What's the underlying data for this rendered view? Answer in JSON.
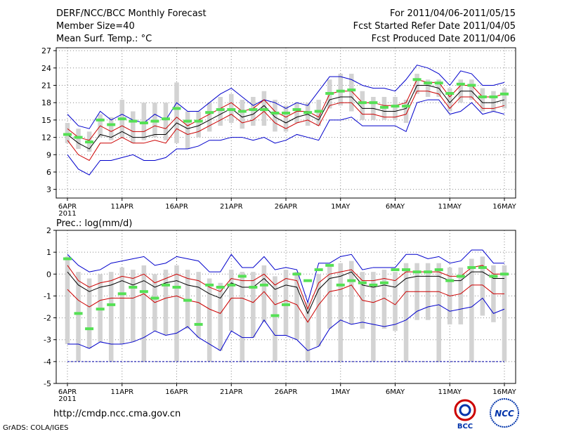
{
  "header": {
    "title": "DERF/NCC/BCC Monthly Forecast",
    "member_size": "Member Size=40",
    "variable": "Mean Surf. Temp.: °C",
    "forecast_period": "For 2011/04/06-2011/05/15",
    "started_refer": "Fcst Started Refer Date 2011/04/05",
    "produced": "Fcst Produced Date 2011/04/06"
  },
  "footer": {
    "url": "http://cmdp.ncc.cma.gov.cn",
    "grads": "GrADS: COLA/IGES"
  },
  "logos": {
    "bcc": "BCC",
    "ncc": "NCC"
  },
  "colors": {
    "upper": "#0000cc",
    "lower": "#0000cc",
    "mean": "#000000",
    "spread": "#cc0000",
    "obs": "#55e055",
    "box": "#d3d3d3"
  },
  "chart_data": [
    {
      "type": "line",
      "title": "Mean Surf. Temp.: °C",
      "ylim": [
        1.5,
        27.5
      ],
      "yticks": [
        3,
        6,
        9,
        12,
        15,
        18,
        21,
        24,
        27
      ],
      "x_tick_labels": [
        {
          "day": 0,
          "label": "6APR",
          "sub": "2011"
        },
        {
          "day": 5,
          "label": "11APR"
        },
        {
          "day": 10,
          "label": "16APR"
        },
        {
          "day": 15,
          "label": "21APR"
        },
        {
          "day": 20,
          "label": "26APR"
        },
        {
          "day": 25,
          "label": "1MAY"
        },
        {
          "day": 30,
          "label": "6MAY"
        },
        {
          "day": 35,
          "label": "11MAY"
        },
        {
          "day": 40,
          "label": "16MAY"
        }
      ],
      "series": [
        {
          "name": "ensemble-max",
          "values": [
            16,
            14,
            13.5,
            16.5,
            15,
            16,
            15,
            14.5,
            16,
            15,
            18,
            16.5,
            16.5,
            18,
            19.5,
            20.5,
            19,
            17.5,
            18.5,
            18,
            17,
            18,
            17.5,
            20,
            22.5,
            22.5,
            22,
            21,
            20.5,
            20.5,
            20,
            22,
            24.5,
            24,
            23,
            21,
            23.5,
            23,
            21,
            21,
            21.5
          ]
        },
        {
          "name": "ensemble-mean-upper",
          "values": [
            13.5,
            12,
            11.5,
            14,
            13,
            14,
            13,
            13,
            14,
            13.5,
            15.5,
            14,
            15,
            16,
            17,
            18,
            16.5,
            17,
            18.5,
            16.5,
            15.5,
            16.5,
            16.5,
            15.5,
            19.5,
            20,
            20,
            18,
            18,
            17.5,
            17.5,
            18,
            22,
            21.5,
            21.5,
            19,
            21,
            21,
            19,
            19,
            19.5
          ]
        },
        {
          "name": "ensemble-mean",
          "values": [
            12.5,
            11,
            10,
            12.5,
            12,
            13,
            12,
            12,
            12.5,
            12.5,
            14.5,
            13.5,
            14,
            15,
            16,
            17,
            15.5,
            16,
            17.5,
            15.5,
            14.5,
            15.5,
            16,
            15,
            18.5,
            19,
            19,
            17,
            17,
            16.5,
            16.5,
            17,
            21,
            21,
            20.5,
            18,
            20,
            20,
            18,
            18,
            18.5
          ]
        },
        {
          "name": "ensemble-mean-lower",
          "values": [
            11.5,
            9,
            8,
            11,
            11,
            12,
            11,
            11,
            11.5,
            11,
            13.5,
            12.5,
            13,
            14,
            15,
            16,
            14.5,
            15,
            16.5,
            14.5,
            13.5,
            14.5,
            15,
            14,
            17.5,
            18,
            18,
            16,
            16,
            15.5,
            15.5,
            16,
            20,
            20,
            19.5,
            17,
            19,
            19,
            17,
            17,
            17.5
          ]
        },
        {
          "name": "ensemble-min",
          "values": [
            9,
            6.5,
            5.5,
            8,
            8,
            8.5,
            9,
            8,
            8,
            8.5,
            10,
            10,
            10.5,
            11.5,
            11.5,
            12,
            12,
            11.5,
            12,
            11,
            11.5,
            12.5,
            12,
            11.5,
            15,
            15,
            15.5,
            14,
            14,
            14,
            14,
            13,
            18,
            18.5,
            18.5,
            16,
            16.5,
            18,
            16,
            16.5,
            16
          ]
        }
      ],
      "observed": [
        12.5,
        12,
        11.2,
        15,
        14.2,
        15.2,
        14.8,
        14.5,
        14.8,
        15.2,
        17,
        14.8,
        14.8,
        16.3,
        16.8,
        16.8,
        16.5,
        16.8,
        16.8,
        16.2,
        16.2,
        16.8,
        16.3,
        16.5,
        19.6,
        20,
        20.2,
        18,
        18,
        17.2,
        17.4,
        17.4,
        22,
        21.4,
        21.4,
        19.6,
        21.2,
        21,
        19,
        19,
        19.5
      ],
      "boxes": [
        [
          11,
          14.5
        ],
        [
          10,
          13.5
        ],
        [
          9.5,
          13
        ],
        [
          12,
          16
        ],
        [
          11.5,
          15.5
        ],
        [
          12,
          18.5
        ],
        [
          11,
          16.5
        ],
        [
          11.5,
          18
        ],
        [
          12,
          18
        ],
        [
          11.5,
          18
        ],
        [
          11,
          21.5
        ],
        [
          10,
          16.5
        ],
        [
          12,
          16.5
        ],
        [
          13,
          18
        ],
        [
          14,
          19
        ],
        [
          14.5,
          19.5
        ],
        [
          13.5,
          18.5
        ],
        [
          14,
          19
        ],
        [
          14,
          20
        ],
        [
          13,
          18.5
        ],
        [
          13,
          17.5
        ],
        [
          14.5,
          18
        ],
        [
          14,
          18
        ],
        [
          14,
          18.5
        ],
        [
          17,
          22
        ],
        [
          17.5,
          23
        ],
        [
          16.5,
          23
        ],
        [
          15,
          20
        ],
        [
          15,
          19
        ],
        [
          15,
          19
        ],
        [
          15,
          19
        ],
        [
          14.5,
          18.5
        ],
        [
          19.5,
          23
        ],
        [
          19,
          22
        ],
        [
          19,
          22
        ],
        [
          16.5,
          20.5
        ],
        [
          18,
          22
        ],
        [
          18.5,
          22
        ],
        [
          16.5,
          20.5
        ],
        [
          16.5,
          20
        ],
        [
          17,
          20.5
        ]
      ]
    },
    {
      "type": "line",
      "title": "Prec.: log(mm/d)",
      "ylim": [
        -5,
        2
      ],
      "yticks": [
        -5,
        -4,
        -3,
        -2,
        -1,
        0,
        1,
        2
      ],
      "dashed_line_at": -4,
      "x_tick_labels": [
        {
          "day": 0,
          "label": "6APR",
          "sub": "2011"
        },
        {
          "day": 5,
          "label": "11APR"
        },
        {
          "day": 10,
          "label": "16APR"
        },
        {
          "day": 15,
          "label": "21APR"
        },
        {
          "day": 20,
          "label": "26APR"
        },
        {
          "day": 25,
          "label": "1MAY"
        },
        {
          "day": 30,
          "label": "6MAY"
        },
        {
          "day": 35,
          "label": "11MAY"
        },
        {
          "day": 40,
          "label": "16MAY"
        }
      ],
      "series": [
        {
          "name": "ensemble-max",
          "values": [
            0.9,
            0.4,
            0.1,
            0.2,
            0.5,
            0.6,
            0.7,
            0.8,
            0.4,
            0.5,
            0.8,
            0.7,
            0.6,
            0.1,
            0.1,
            0.9,
            0.3,
            0.3,
            0.8,
            0.2,
            0.3,
            0.2,
            -1.3,
            0.5,
            0.5,
            0.8,
            0.9,
            0.2,
            0.3,
            0.3,
            0.3,
            0.9,
            0.9,
            0.7,
            0.8,
            0.5,
            0.6,
            1.1,
            1.1,
            0.5,
            0.5
          ]
        },
        {
          "name": "ensemble-mean-upper",
          "values": [
            0.4,
            -0.3,
            -0.6,
            -0.4,
            -0.3,
            -0.1,
            -0.2,
            0,
            -0.4,
            -0.2,
            0,
            -0.2,
            -0.3,
            -0.6,
            -0.8,
            -0.2,
            -0.3,
            -0.3,
            0,
            -0.5,
            -0.2,
            -0.3,
            -1.6,
            -0.4,
            0,
            0.1,
            0.2,
            -0.3,
            -0.3,
            -0.2,
            -0.3,
            0.1,
            0.1,
            0.1,
            0.1,
            -0.1,
            -0.1,
            0.3,
            0.4,
            0,
            0
          ]
        },
        {
          "name": "ensemble-mean",
          "values": [
            0.1,
            -0.5,
            -0.8,
            -0.6,
            -0.5,
            -0.3,
            -0.5,
            -0.3,
            -0.6,
            -0.4,
            -0.3,
            -0.5,
            -0.6,
            -0.9,
            -1.1,
            -0.4,
            -0.6,
            -0.6,
            -0.2,
            -0.7,
            -0.5,
            -0.6,
            -1.8,
            -0.7,
            -0.2,
            -0.1,
            0.1,
            -0.5,
            -0.6,
            -0.5,
            -0.6,
            -0.2,
            -0.1,
            -0.1,
            -0.1,
            -0.3,
            -0.3,
            0.1,
            0.1,
            -0.2,
            -0.2
          ]
        },
        {
          "name": "ensemble-mean-lower",
          "values": [
            -0.7,
            -1.2,
            -1.5,
            -1.2,
            -1.1,
            -1.1,
            -1.1,
            -0.9,
            -1.3,
            -1.1,
            -1.0,
            -1.2,
            -1.3,
            -1.6,
            -1.8,
            -1.1,
            -1.1,
            -1.3,
            -0.8,
            -1.4,
            -1.2,
            -1.4,
            -2.2,
            -1.4,
            -0.8,
            -0.7,
            -0.5,
            -1.2,
            -1.3,
            -1.1,
            -1.4,
            -0.8,
            -0.8,
            -0.8,
            -0.8,
            -1.0,
            -0.9,
            -0.5,
            -0.5,
            -0.9,
            -0.9
          ]
        },
        {
          "name": "ensemble-min",
          "values": [
            -3.2,
            -3.2,
            -3.4,
            -3.1,
            -3.2,
            -3.2,
            -3.1,
            -2.9,
            -2.6,
            -2.8,
            -2.7,
            -2.4,
            -2.9,
            -3.2,
            -3.5,
            -2.6,
            -2.9,
            -2.9,
            -2.1,
            -2.8,
            -2.8,
            -3.0,
            -3.5,
            -3.3,
            -2.5,
            -2.1,
            -2.3,
            -2.2,
            -2.3,
            -2.4,
            -2.3,
            -2.1,
            -1.7,
            -1.5,
            -1.4,
            -1.7,
            -1.6,
            -1.5,
            -1.1,
            -1.8,
            -1.6
          ]
        }
      ],
      "observed": [
        0.7,
        -1.8,
        -2.5,
        -1.6,
        -1.4,
        -0.9,
        -0.6,
        -0.8,
        -1.1,
        -0.5,
        -0.6,
        -1.2,
        -2.3,
        -0.5,
        -0.6,
        -0.5,
        -0.1,
        -0.6,
        -0.5,
        -1.9,
        -1.4,
        0,
        -0.3,
        0.2,
        0.4,
        -0.5,
        -0.3,
        -0.4,
        -0.5,
        -0.4,
        0.2,
        0.2,
        0.1,
        0.1,
        0.2,
        -0.3,
        -0.1,
        0.3,
        0.3,
        -0.1,
        0
      ]
    }
  ]
}
